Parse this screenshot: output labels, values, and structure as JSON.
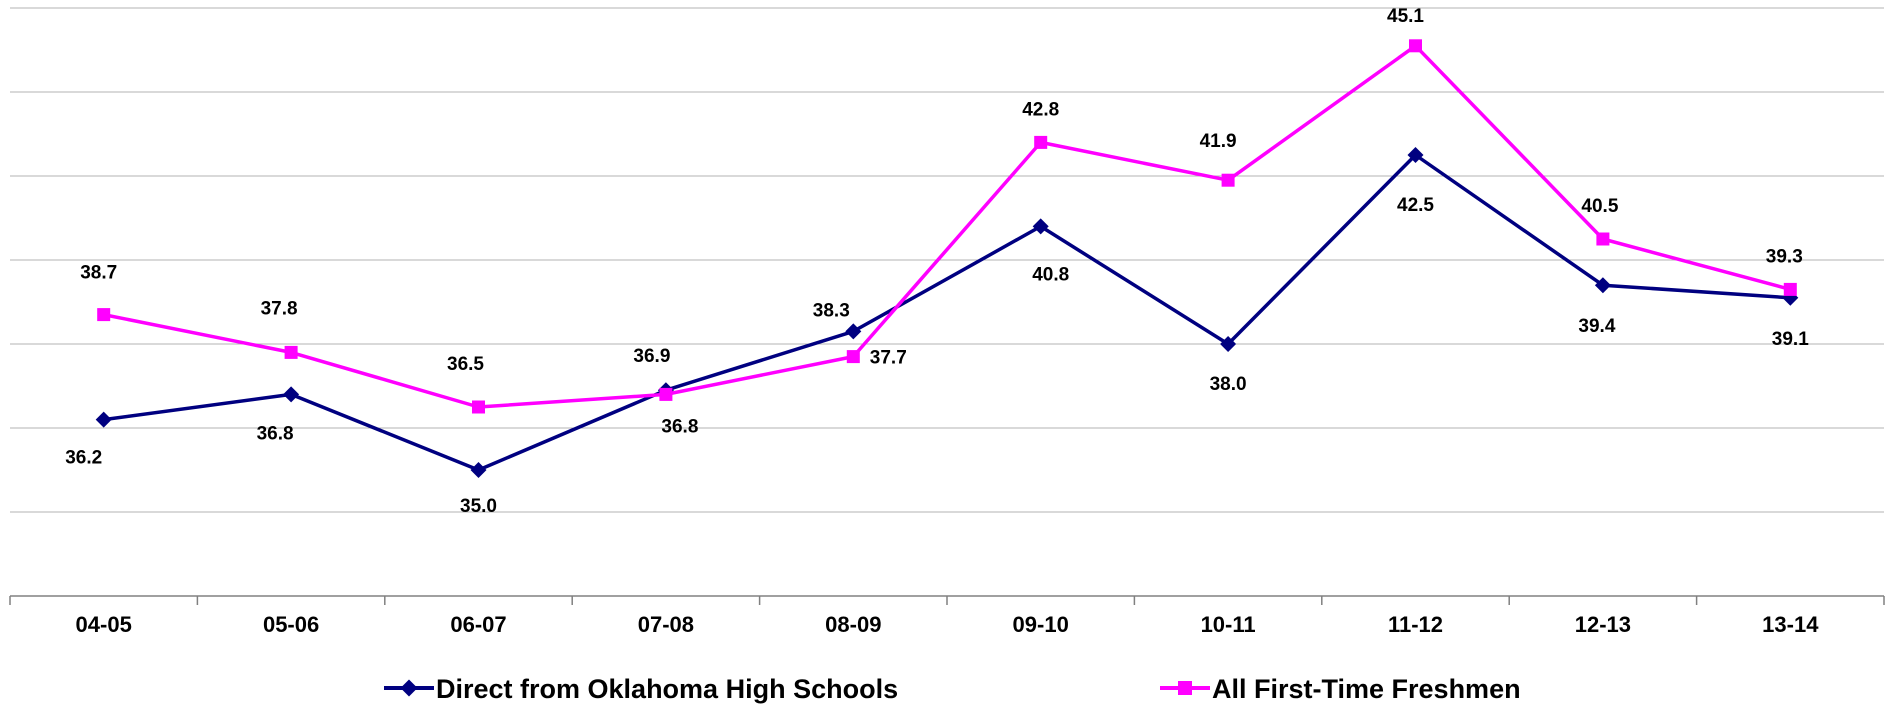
{
  "chart_data": {
    "type": "line",
    "categories": [
      "04-05",
      "05-06",
      "06-07",
      "07-08",
      "08-09",
      "09-10",
      "10-11",
      "11-12",
      "12-13",
      "13-14"
    ],
    "series": [
      {
        "name": "Direct from Oklahoma High Schools",
        "color": "#000080",
        "marker": "diamond",
        "values": [
          36.2,
          36.8,
          35.0,
          36.9,
          38.3,
          40.8,
          38.0,
          42.5,
          39.4,
          39.1
        ],
        "labels": [
          "36.2",
          "36.8",
          "35.0",
          "36.9",
          "38.3",
          "40.8",
          "38.0",
          "42.5",
          "39.4",
          "39.1"
        ]
      },
      {
        "name": "All First-Time Freshmen",
        "color": "#ff00ff",
        "marker": "square",
        "values": [
          38.7,
          37.8,
          36.5,
          36.8,
          37.7,
          42.8,
          41.9,
          45.1,
          40.5,
          39.3
        ],
        "labels": [
          "38.7",
          "37.8",
          "36.5",
          "36.8",
          "37.7",
          "42.8",
          "41.9",
          "45.1",
          "40.5",
          "39.3"
        ]
      }
    ],
    "title": "",
    "xlabel": "",
    "ylabel": "",
    "ylim": [
      32,
      46
    ],
    "grid": true,
    "legend": "bottom"
  }
}
